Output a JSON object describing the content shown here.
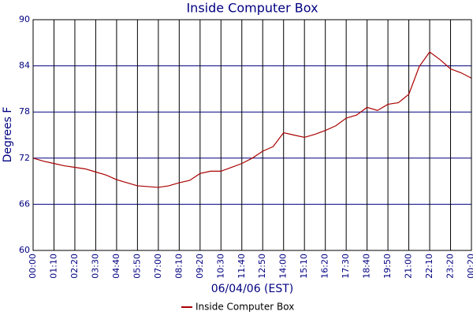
{
  "chart_data": {
    "type": "line",
    "title": "Inside Computer Box",
    "x_label": "06/04/06 (EST)",
    "y_label": "Degrees F",
    "categories": [
      "00:00",
      null,
      "01:10",
      null,
      "02:20",
      null,
      "03:30",
      null,
      "04:40",
      null,
      "05:50",
      null,
      "07:00",
      null,
      "08:10",
      null,
      "09:20",
      null,
      "10:30",
      null,
      "11:40",
      null,
      "12:50",
      null,
      "14:00",
      null,
      "15:10",
      null,
      "16:20",
      null,
      "17:30",
      null,
      "18:40",
      null,
      "19:50",
      null,
      "21:00",
      null,
      "22:10",
      null,
      "23:20",
      null,
      "00:20"
    ],
    "series": [
      {
        "name": "Inside Computer Box",
        "color": "#aa0000",
        "values": [
          72.0,
          71.6,
          71.3,
          71.0,
          70.8,
          70.6,
          70.2,
          69.8,
          69.2,
          68.8,
          68.4,
          68.3,
          68.2,
          68.4,
          68.8,
          69.1,
          70.0,
          70.3,
          70.3,
          70.8,
          71.3,
          72.0,
          72.9,
          73.5,
          75.3,
          75.0,
          74.7,
          75.1,
          75.6,
          76.2,
          77.2,
          77.6,
          78.6,
          78.2,
          79.0,
          79.2,
          80.3,
          83.9,
          85.8,
          84.8,
          83.6,
          83.1,
          82.4
        ]
      }
    ],
    "ylim": [
      60,
      90
    ],
    "yticks": [
      60,
      66,
      72,
      78,
      84,
      90
    ],
    "grid": true,
    "legend": "bottom"
  }
}
